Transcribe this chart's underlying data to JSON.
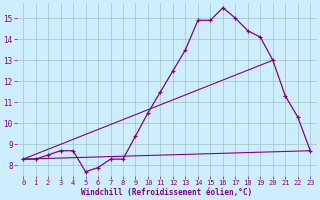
{
  "xlabel": "Windchill (Refroidissement éolien,°C)",
  "bg_color": "#cceeff",
  "line_color": "#880088",
  "grid_color": "#aacccc",
  "xmin": -0.5,
  "xmax": 23.5,
  "ymin": 7.5,
  "ymax": 15.7,
  "series1_x": [
    0,
    1,
    2,
    3,
    4,
    5,
    6,
    7,
    8,
    9,
    10,
    11,
    12,
    13,
    14,
    15,
    16,
    17,
    18,
    19,
    20,
    21,
    22,
    23
  ],
  "series1_y": [
    8.3,
    8.3,
    8.5,
    8.7,
    8.7,
    7.7,
    7.9,
    8.3,
    8.3,
    9.4,
    10.5,
    11.5,
    12.5,
    13.5,
    14.9,
    14.9,
    15.5,
    15.0,
    14.4,
    14.1,
    13.0,
    11.3,
    10.3,
    8.7
  ],
  "series2_x": [
    0,
    23
  ],
  "series2_y": [
    8.3,
    8.7
  ],
  "series3_x": [
    0,
    20
  ],
  "series3_y": [
    8.3,
    13.0
  ],
  "yticks": [
    8,
    9,
    10,
    11,
    12,
    13,
    14,
    15
  ],
  "xticks": [
    0,
    1,
    2,
    3,
    4,
    5,
    6,
    7,
    8,
    9,
    10,
    11,
    12,
    13,
    14,
    15,
    16,
    17,
    18,
    19,
    20,
    21,
    22,
    23
  ]
}
